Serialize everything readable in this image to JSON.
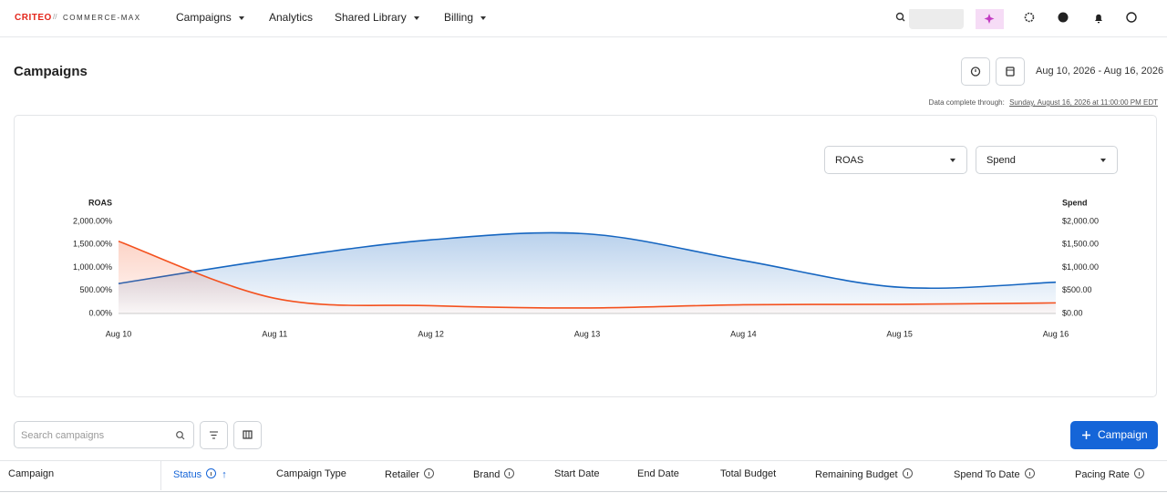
{
  "nav": {
    "logo": "CRITEO",
    "product": "COMMERCE-MAX",
    "items": [
      "Campaigns",
      "Analytics",
      "Shared Library",
      "Billing"
    ]
  },
  "page": {
    "title": "Campaigns",
    "date_range": "Aug 10, 2026 - Aug 16, 2026",
    "data_complete_label": "Data complete through:",
    "data_complete_value": "Sunday, August 16, 2026 at 11:00:00 PM EDT"
  },
  "chart_controls": {
    "left_metric": "ROAS",
    "right_metric": "Spend"
  },
  "chart_data": {
    "type": "line",
    "categories": [
      "Aug 10",
      "Aug 11",
      "Aug 12",
      "Aug 13",
      "Aug 14",
      "Aug 15",
      "Aug 16"
    ],
    "series": [
      {
        "name": "ROAS",
        "color": "#1565c0",
        "values": [
          650,
          1180,
          1600,
          1730,
          1150,
          570,
          680
        ]
      },
      {
        "name": "Spend",
        "color": "#f4511e",
        "axis": "y2",
        "values": [
          1570,
          330,
          170,
          120,
          190,
          200,
          230
        ]
      }
    ],
    "ylim": [
      0,
      2000
    ],
    "yticks": [
      {
        "value": 0,
        "label": "0.00%"
      },
      {
        "value": 500,
        "label": "500.00%"
      },
      {
        "value": 1000,
        "label": "1,000.00%"
      },
      {
        "value": 1500,
        "label": "1,500.00%"
      },
      {
        "value": 2000,
        "label": "2,000.00%"
      }
    ],
    "y2lim": [
      0,
      2000
    ],
    "y2ticks": [
      {
        "value": 0,
        "label": "$0.00"
      },
      {
        "value": 500,
        "label": "$500.00"
      },
      {
        "value": 1000,
        "label": "$1,000.00"
      },
      {
        "value": 1500,
        "label": "$1,500.00"
      },
      {
        "value": 2000,
        "label": "$2,000.00"
      }
    ],
    "grid": false
  },
  "toolbar": {
    "search_placeholder": "Search campaigns",
    "add_button": "Campaign"
  },
  "table": {
    "columns": [
      "Campaign",
      "Status",
      "Campaign Type",
      "Retailer",
      "Brand",
      "Start Date",
      "End Date",
      "Total Budget",
      "Remaining Budget",
      "Spend To Date",
      "Pacing Rate"
    ]
  }
}
